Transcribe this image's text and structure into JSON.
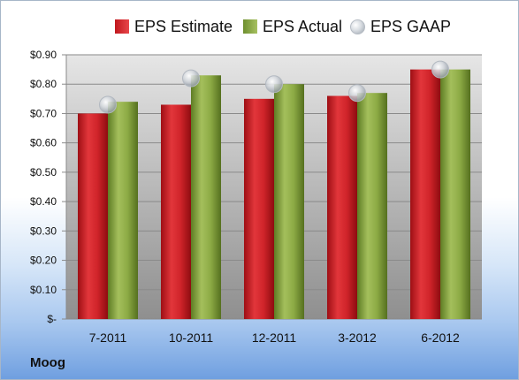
{
  "company": "Moog",
  "colors": {
    "estimate": "#c8181e",
    "actual": "#86a83e",
    "gaap": "#c9cdd3"
  },
  "chart_data": {
    "type": "bar",
    "categories": [
      "7-2011",
      "10-2011",
      "12-2011",
      "3-2012",
      "6-2012"
    ],
    "series": [
      {
        "name": "EPS Estimate",
        "type": "bar",
        "values": [
          0.7,
          0.73,
          0.75,
          0.76,
          0.85
        ]
      },
      {
        "name": "EPS Actual",
        "type": "bar",
        "values": [
          0.74,
          0.83,
          0.8,
          0.77,
          0.85
        ]
      },
      {
        "name": "EPS GAAP",
        "type": "scatter",
        "values": [
          0.73,
          0.82,
          0.8,
          0.77,
          0.85
        ]
      }
    ],
    "ylim": [
      0,
      0.9
    ],
    "yticks": [
      0,
      0.1,
      0.2,
      0.3,
      0.4,
      0.5,
      0.6,
      0.7,
      0.8,
      0.9
    ],
    "ytick_labels": [
      "$-",
      "$0.10",
      "$0.20",
      "$0.30",
      "$0.40",
      "$0.50",
      "$0.60",
      "$0.70",
      "$0.80",
      "$0.90"
    ],
    "grid": true,
    "legend_position": "top"
  }
}
